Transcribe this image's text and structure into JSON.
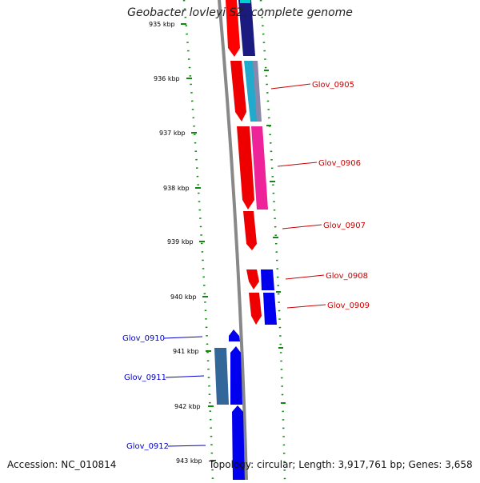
{
  "title": "Geobacter lovleyi SZ, complete genome",
  "accession": "Accession: NC_010814",
  "summary": "Topology: circular; Length: 3,917,761 bp; Genes: 3,658",
  "axis": {
    "unit": "kbp",
    "ticks": [
      "935 kbp",
      "936 kbp",
      "937 kbp",
      "938 kbp",
      "939 kbp",
      "940 kbp",
      "941 kbp",
      "942 kbp",
      "943 kbp"
    ]
  },
  "colors": {
    "backbone": "#888888",
    "forward_label": "#cc0000",
    "reverse_label": "#0000cc",
    "tick_mark": "#118811"
  },
  "gene_labels_forward": [
    {
      "text": "Glov_0905"
    },
    {
      "text": "Glov_0906"
    },
    {
      "text": "Glov_0907"
    },
    {
      "text": "Glov_0908"
    },
    {
      "text": "Glov_0909"
    }
  ],
  "gene_labels_reverse": [
    {
      "text": "Glov_0910"
    },
    {
      "text": "Glov_0911"
    },
    {
      "text": "Glov_0912"
    }
  ]
}
